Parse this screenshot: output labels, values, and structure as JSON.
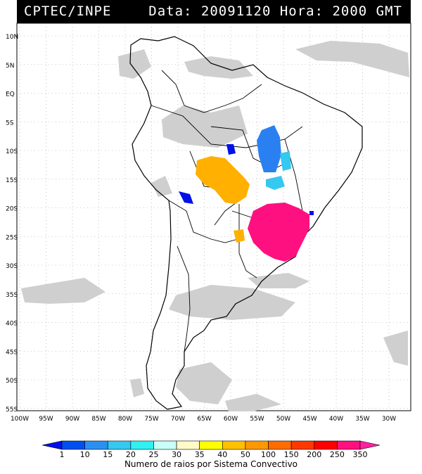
{
  "header": {
    "source": "CPTEC/INPE",
    "datetime": "Data: 20091120 Hora: 2000 GMT"
  },
  "map": {
    "lat_labels": [
      "10N",
      "5N",
      "EQ",
      "5S",
      "10S",
      "15S",
      "20S",
      "25S",
      "30S",
      "35S",
      "40S",
      "45S",
      "50S",
      "55S"
    ],
    "lon_labels": [
      "100W",
      "95W",
      "90W",
      "85W",
      "80W",
      "75W",
      "70W",
      "65W",
      "60W",
      "55W",
      "50W",
      "45W",
      "40W",
      "35W",
      "30W"
    ]
  },
  "legend": {
    "levels": [
      "1",
      "10",
      "15",
      "20",
      "25",
      "30",
      "35",
      "40",
      "50",
      "100",
      "150",
      "200",
      "250",
      "350"
    ],
    "colors": [
      "#0010e8",
      "#0050f0",
      "#2a90f0",
      "#35c8f0",
      "#30f0f0",
      "#c8fff8",
      "#fffac8",
      "#ffff00",
      "#ffc000",
      "#ff9800",
      "#ff6c00",
      "#ff3800",
      "#ff0000",
      "#ff1080",
      "#ff20a0"
    ],
    "title": "Numero de raios por Sistema Convectivo"
  }
}
